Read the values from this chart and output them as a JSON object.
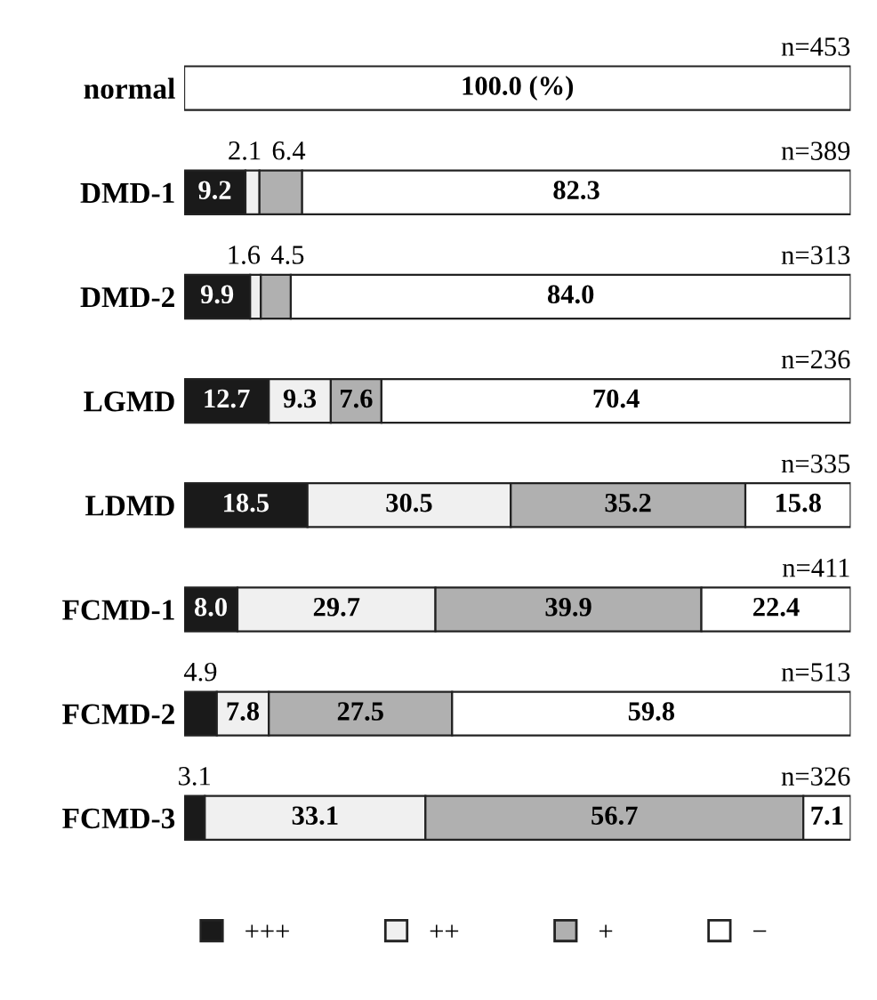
{
  "chart_data": {
    "type": "bar",
    "orientation": "horizontal",
    "stacked": true,
    "xlim": [
      0,
      100
    ],
    "tick_labels": false,
    "legend": "bottom",
    "grid": false,
    "categories": [
      "normal",
      "DMD-1",
      "DMD-2",
      "LGMD",
      "LDMD",
      "FCMD-1",
      "FCMD-2",
      "FCMD-3"
    ],
    "series": [
      {
        "name": "+++",
        "color": "#1a1a1a",
        "values": [
          0,
          9.2,
          9.9,
          12.7,
          18.5,
          8.0,
          4.9,
          3.1
        ],
        "value_labels": [
          null,
          "9.2",
          "9.9",
          "12.7",
          "18.5",
          "8.0",
          "4.9",
          "3.1"
        ]
      },
      {
        "name": "++",
        "color": "#f0f0f0",
        "values": [
          0,
          2.1,
          1.6,
          9.3,
          30.5,
          29.7,
          7.8,
          33.1
        ],
        "value_labels": [
          null,
          "2.1",
          "1.6",
          "9.3",
          "30.5",
          "29.7",
          "7.8",
          "33.1"
        ]
      },
      {
        "name": "+",
        "color": "#b0b0b0",
        "values": [
          0,
          6.4,
          4.5,
          7.6,
          35.2,
          39.9,
          27.5,
          56.7
        ],
        "value_labels": [
          null,
          "6.4",
          "4.5",
          "7.6",
          "35.2",
          "39.9",
          "27.5",
          "56.7"
        ]
      },
      {
        "name": "−",
        "color": "#ffffff",
        "values": [
          100.0,
          82.3,
          84.0,
          70.4,
          15.8,
          22.4,
          59.8,
          7.1
        ],
        "value_labels": [
          "100.0 (%)",
          "82.3",
          "84.0",
          "70.4",
          "15.8",
          "22.4",
          "59.8",
          "7.1"
        ]
      }
    ],
    "annotations": [
      "n=453",
      "n=389",
      "n=313",
      "n=236",
      "n=335",
      "n=411",
      "n=513",
      "n=326"
    ]
  }
}
